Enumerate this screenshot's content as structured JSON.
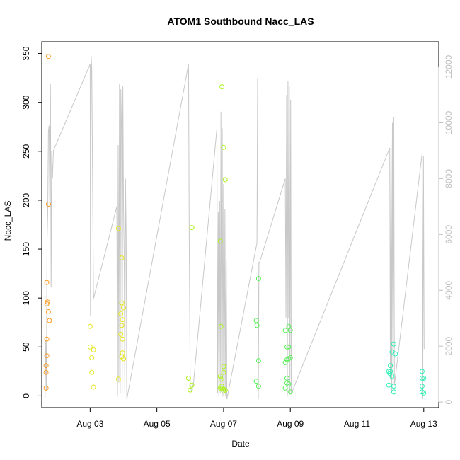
{
  "chart_data": {
    "type": "scatter",
    "title": "ATOM1 Southbound Nacc_LAS",
    "xlabel": "Date",
    "ylabel": "Nacc_LAS",
    "x_ticks": [
      "Aug 03",
      "Aug 05",
      "Aug 07",
      "Aug 09",
      "Aug 11",
      "Aug 13"
    ],
    "y_ticks": [
      "0",
      "50",
      "100",
      "150",
      "200",
      "250",
      "300",
      "350"
    ],
    "y2_ticks": [
      "0",
      "2000",
      "4000",
      "6000",
      "8000",
      "10000",
      "12000"
    ],
    "xlim_days": [
      1.55,
      13.45
    ],
    "ylim": [
      -12,
      362
    ],
    "y2lim": [
      -200,
      12900
    ],
    "colors": {
      "axis": "#000000",
      "secondary_line": "#c8c8c8",
      "secondary_axis": "#bebebe"
    },
    "series": [
      {
        "color": "#ff9a1f",
        "points": [
          [
            1.75,
            347
          ],
          [
            1.75,
            196
          ],
          [
            1.7,
            116
          ],
          [
            1.72,
            96
          ],
          [
            1.7,
            94
          ],
          [
            1.75,
            86
          ],
          [
            1.78,
            77
          ],
          [
            1.7,
            58
          ],
          [
            1.7,
            41
          ],
          [
            1.68,
            31
          ],
          [
            1.68,
            24
          ],
          [
            1.68,
            8
          ]
        ]
      },
      {
        "color": "#e6e61a",
        "points": [
          [
            3.0,
            71
          ],
          [
            3.0,
            50
          ],
          [
            3.1,
            47
          ],
          [
            3.05,
            39
          ],
          [
            3.05,
            24
          ],
          [
            3.1,
            9
          ],
          [
            3.85,
            171
          ],
          [
            3.95,
            141
          ],
          [
            3.95,
            95
          ],
          [
            4.0,
            90
          ],
          [
            3.92,
            84
          ],
          [
            3.97,
            78
          ],
          [
            3.95,
            72
          ],
          [
            3.92,
            63
          ],
          [
            3.97,
            58
          ],
          [
            3.97,
            44
          ],
          [
            3.95,
            40
          ],
          [
            4.0,
            38
          ],
          [
            3.85,
            17
          ]
        ]
      },
      {
        "color": "#aaf21a",
        "points": [
          [
            6.05,
            172
          ],
          [
            5.95,
            18
          ],
          [
            6.05,
            11
          ],
          [
            6.0,
            6
          ],
          [
            6.95,
            316
          ],
          [
            7.0,
            254
          ],
          [
            7.05,
            221
          ],
          [
            6.9,
            158
          ],
          [
            6.92,
            71
          ],
          [
            7.0,
            30
          ],
          [
            7.0,
            24
          ],
          [
            6.9,
            20
          ],
          [
            6.92,
            17
          ],
          [
            6.95,
            10
          ],
          [
            6.95,
            8
          ],
          [
            6.9,
            8
          ],
          [
            7.0,
            7
          ],
          [
            7.05,
            6
          ],
          [
            7.0,
            5
          ]
        ]
      },
      {
        "color": "#55f055",
        "points": [
          [
            8.05,
            120
          ],
          [
            7.98,
            77
          ],
          [
            8.0,
            72
          ],
          [
            8.05,
            36
          ],
          [
            7.98,
            15
          ],
          [
            8.05,
            10
          ],
          [
            8.85,
            67
          ],
          [
            8.95,
            71
          ],
          [
            9.0,
            67
          ],
          [
            8.9,
            50
          ],
          [
            8.95,
            50
          ],
          [
            8.95,
            38
          ],
          [
            9.0,
            39
          ],
          [
            8.9,
            37
          ],
          [
            8.85,
            34
          ],
          [
            8.9,
            18
          ],
          [
            8.9,
            13
          ],
          [
            8.95,
            12
          ],
          [
            8.85,
            8
          ],
          [
            9.0,
            4
          ]
        ]
      },
      {
        "color": "#2cf0b4",
        "points": [
          [
            12.1,
            53
          ],
          [
            12.05,
            45
          ],
          [
            12.15,
            43
          ],
          [
            12.0,
            31
          ],
          [
            12.0,
            25
          ],
          [
            11.95,
            25
          ],
          [
            11.98,
            23
          ],
          [
            12.05,
            20
          ],
          [
            11.95,
            11
          ],
          [
            12.1,
            10
          ],
          [
            12.1,
            4
          ],
          [
            12.95,
            25
          ],
          [
            12.95,
            18
          ],
          [
            13.0,
            18
          ],
          [
            12.95,
            10
          ],
          [
            12.95,
            4
          ],
          [
            13.0,
            3
          ]
        ]
      }
    ],
    "secondary_line": [
      [
        1.65,
        150
      ],
      [
        1.67,
        2200
      ],
      [
        1.69,
        400
      ],
      [
        1.71,
        5800
      ],
      [
        1.73,
        6800
      ],
      [
        1.75,
        9700
      ],
      [
        1.77,
        9900
      ],
      [
        1.79,
        7200
      ],
      [
        1.81,
        11400
      ],
      [
        1.83,
        4100
      ],
      [
        1.85,
        9000
      ],
      [
        1.87,
        8000
      ],
      [
        1.9,
        9000
      ],
      [
        3.0,
        12100
      ],
      [
        3.01,
        3100
      ],
      [
        3.03,
        12400
      ],
      [
        3.05,
        11900
      ],
      [
        3.1,
        3700
      ],
      [
        3.8,
        7000
      ],
      [
        3.82,
        200
      ],
      [
        3.84,
        9200
      ],
      [
        3.86,
        700
      ],
      [
        3.88,
        11400
      ],
      [
        3.9,
        300
      ],
      [
        3.92,
        11200
      ],
      [
        3.94,
        9800
      ],
      [
        3.96,
        200
      ],
      [
        3.98,
        11300
      ],
      [
        4.0,
        7000
      ],
      [
        4.02,
        5400
      ],
      [
        4.04,
        300
      ],
      [
        4.06,
        8000
      ],
      [
        4.08,
        5900
      ],
      [
        4.1,
        100
      ],
      [
        5.95,
        12100
      ],
      [
        5.97,
        5800
      ],
      [
        6.0,
        500
      ],
      [
        6.05,
        400
      ],
      [
        6.1,
        700
      ],
      [
        6.8,
        9800
      ],
      [
        6.82,
        300
      ],
      [
        6.84,
        6800
      ],
      [
        6.86,
        200
      ],
      [
        6.88,
        7200
      ],
      [
        6.9,
        300
      ],
      [
        6.92,
        10400
      ],
      [
        6.94,
        400
      ],
      [
        6.96,
        9800
      ],
      [
        6.98,
        200
      ],
      [
        7.0,
        7800
      ],
      [
        7.02,
        300
      ],
      [
        7.04,
        6900
      ],
      [
        7.06,
        200
      ],
      [
        7.08,
        5100
      ],
      [
        7.1,
        100
      ],
      [
        8.0,
        5700
      ],
      [
        8.02,
        11600
      ],
      [
        8.04,
        100
      ],
      [
        8.06,
        5000
      ],
      [
        8.08,
        5000
      ],
      [
        8.85,
        8000
      ],
      [
        8.87,
        3000
      ],
      [
        8.89,
        11000
      ],
      [
        8.91,
        200
      ],
      [
        8.93,
        11500
      ],
      [
        8.95,
        3000
      ],
      [
        8.97,
        11300
      ],
      [
        8.99,
        300
      ],
      [
        9.01,
        10800
      ],
      [
        9.03,
        300
      ],
      [
        11.98,
        9100
      ],
      [
        12.0,
        800
      ],
      [
        12.02,
        9300
      ],
      [
        12.04,
        400
      ],
      [
        12.06,
        10000
      ],
      [
        12.08,
        500
      ],
      [
        12.1,
        10200
      ],
      [
        12.12,
        600
      ],
      [
        12.95,
        8900
      ],
      [
        12.97,
        100
      ],
      [
        12.99,
        8800
      ],
      [
        13.01,
        1900
      ]
    ]
  }
}
